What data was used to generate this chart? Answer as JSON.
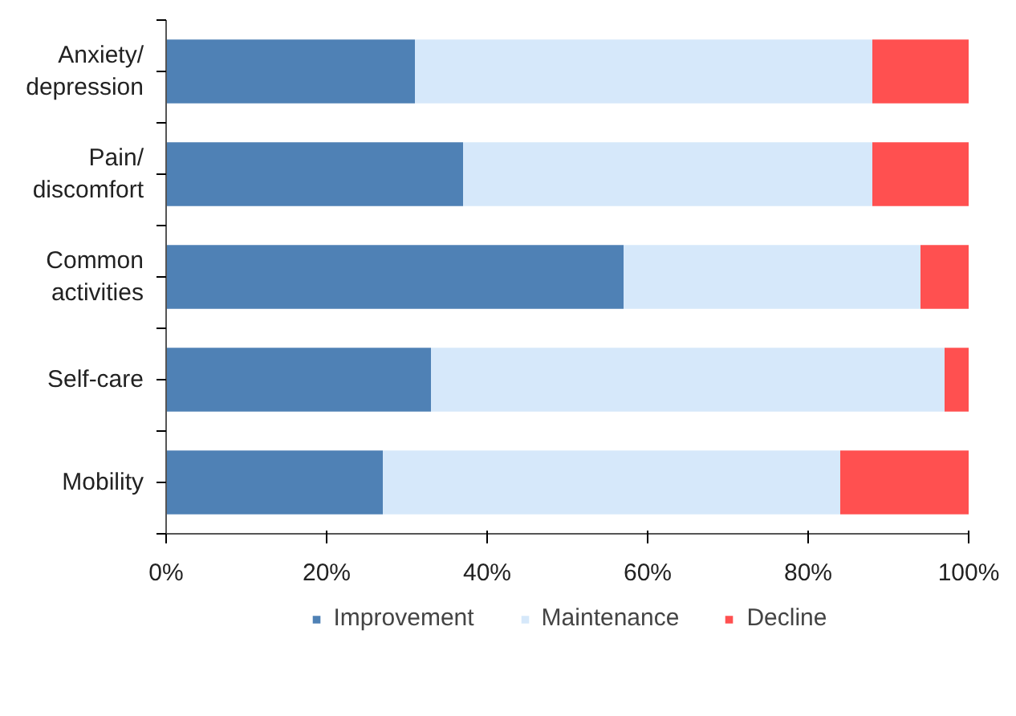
{
  "chart_data": {
    "type": "bar",
    "orientation": "horizontal",
    "stacked": true,
    "categories": [
      "Anxiety/\ndepression",
      "Pain/\ndiscomfort",
      "Common\nactivities",
      "Self-care",
      "Mobility"
    ],
    "series": [
      {
        "name": "Improvement",
        "color": "#4f81b5",
        "values": [
          31,
          37,
          57,
          33,
          27
        ]
      },
      {
        "name": "Maintenance",
        "color": "#d6e8fa",
        "values": [
          57,
          51,
          37,
          64,
          57
        ]
      },
      {
        "name": "Decline",
        "color": "#ff5050",
        "values": [
          12,
          12,
          6,
          3,
          16
        ]
      }
    ],
    "xlim": [
      0,
      100
    ],
    "xticks": [
      {
        "value": 0,
        "label": "0%"
      },
      {
        "value": 20,
        "label": "20%"
      },
      {
        "value": 40,
        "label": "40%"
      },
      {
        "value": 60,
        "label": "60%"
      },
      {
        "value": 80,
        "label": "80%"
      },
      {
        "value": 100,
        "label": "100%"
      }
    ],
    "legend": "bottom",
    "grid": false
  }
}
